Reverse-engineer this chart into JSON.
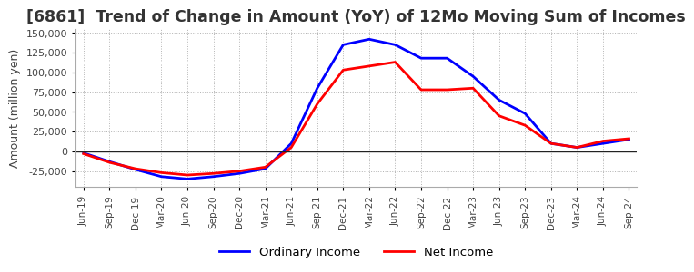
{
  "title": "[6861]  Trend of Change in Amount (YoY) of 12Mo Moving Sum of Incomes",
  "ylabel": "Amount (million yen)",
  "ylim": [
    -45000,
    155000
  ],
  "yticks": [
    -25000,
    0,
    25000,
    50000,
    75000,
    100000,
    125000,
    150000
  ],
  "dates": [
    "Jun-19",
    "Sep-19",
    "Dec-19",
    "Mar-20",
    "Jun-20",
    "Sep-20",
    "Dec-20",
    "Mar-21",
    "Jun-21",
    "Sep-21",
    "Dec-21",
    "Mar-22",
    "Jun-22",
    "Sep-22",
    "Dec-22",
    "Mar-23",
    "Jun-23",
    "Sep-23",
    "Dec-23",
    "Mar-24",
    "Jun-24",
    "Sep-24"
  ],
  "ordinary_income": [
    -2000,
    -13000,
    -23000,
    -32000,
    -35000,
    -32000,
    -28000,
    -22000,
    10000,
    80000,
    135000,
    142000,
    135000,
    118000,
    118000,
    95000,
    65000,
    48000,
    10000,
    5000,
    10000,
    15000
  ],
  "net_income": [
    -3000,
    -14000,
    -22000,
    -27000,
    -30000,
    -28000,
    -25000,
    -20000,
    5000,
    60000,
    103000,
    108000,
    113000,
    78000,
    78000,
    80000,
    45000,
    33000,
    10000,
    5000,
    13000,
    16000
  ],
  "ordinary_income_color": "#0000ff",
  "net_income_color": "#ff0000",
  "background_color": "#ffffff",
  "grid_color": "#aaaaaa",
  "title_color": "#333333",
  "title_fontsize": 12.5
}
